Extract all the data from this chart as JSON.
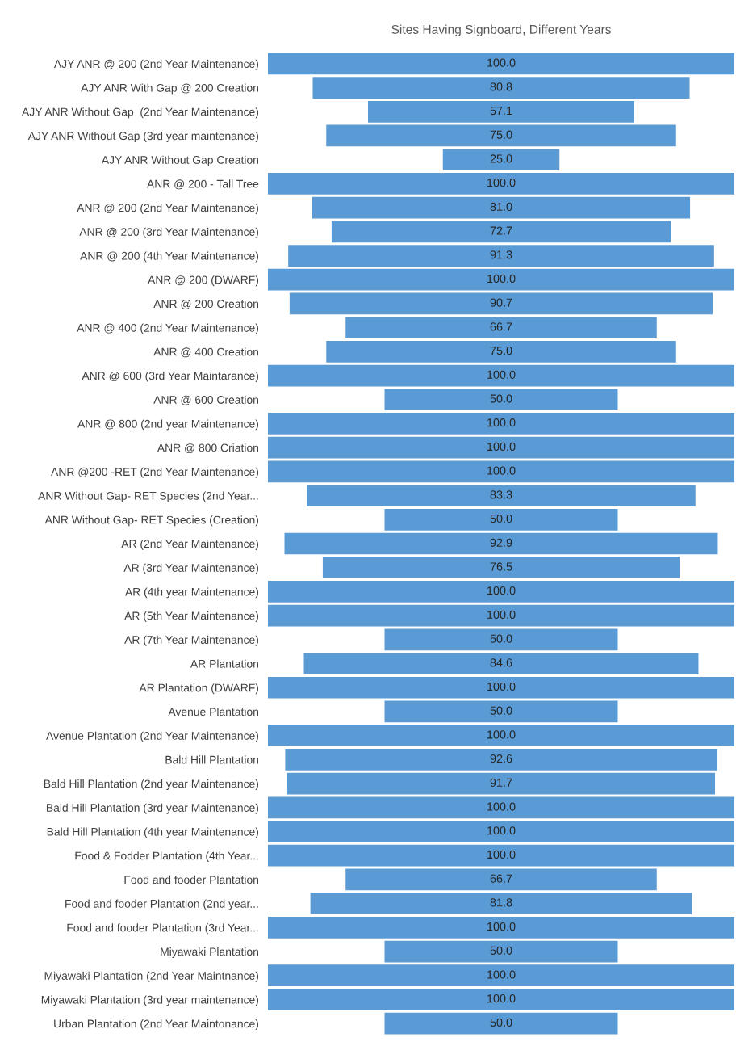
{
  "chart_data": {
    "type": "other",
    "title": "Sites Having Signboard, Different Years",
    "categories": [
      "AJY ANR @ 200 (2nd Year Maintenance)",
      "AJY ANR With Gap @ 200 Creation",
      "AJY ANR Without Gap  (2nd Year Maintenance)",
      "AJY ANR Without Gap (3rd year maintenance)",
      "AJY ANR Without Gap Creation",
      "ANR @ 200 - Tall Tree",
      "ANR @ 200 (2nd Year Maintenance)",
      "ANR @ 200 (3rd Year Maintenance)",
      "ANR @ 200 (4th Year Maintenance)",
      "ANR @ 200 (DWARF)",
      "ANR @ 200 Creation",
      "ANR @ 400 (2nd Year Maintenance)",
      "ANR @ 400 Creation",
      "ANR @ 600 (3rd Year Maintarance)",
      "ANR @ 600 Creation",
      "ANR @ 800 (2nd year Maintenance)",
      "ANR @ 800 Criation",
      "ANR @200 -RET (2nd Year Maintenance)",
      "ANR Without Gap- RET Species (2nd Year...",
      "ANR Without Gap- RET Species (Creation)",
      "AR (2nd Year Maintenance)",
      "AR (3rd Year Maintenance)",
      "AR (4th year Maintenance)",
      "AR (5th Year Maintenance)",
      "AR (7th Year Maintenance)",
      "AR Plantation",
      "AR Plantation (DWARF)",
      "Avenue Plantation",
      "Avenue Plantation (2nd Year Maintenance)",
      "Bald Hill Plantation",
      "Bald Hill Plantation (2nd year Maintenance)",
      "Bald Hill Plantation (3rd year Maintenance)",
      "Bald Hill Plantation (4th year Maintenance)",
      "Food & Fodder Plantation (4th Year...",
      "Food and fooder Plantation",
      "Food and fooder Plantation (2nd year...",
      "Food and fooder Plantation (3rd Year...",
      "Miyawaki Plantation",
      "Miyawaki Plantation (2nd Year Maintnance)",
      "Miyawaki Plantation (3rd year maintenance)",
      "Urban Plantation (2nd Year Maintonance)"
    ],
    "values": [
      100,
      80.8,
      57.1,
      75,
      25,
      100,
      81,
      72.7,
      91.3,
      100,
      90.7,
      66.7,
      75,
      100,
      50,
      100,
      100,
      100,
      83.3,
      50,
      92.9,
      76.5,
      100,
      100,
      50,
      84.6,
      100,
      50,
      100,
      92.6,
      91.7,
      100,
      100,
      100,
      66.7,
      81.8,
      100,
      50,
      100,
      100,
      50
    ],
    "value_labels": [
      "100.0",
      "80.8",
      "57.1",
      "75.0",
      "25.0",
      "100.0",
      "81.0",
      "72.7",
      "91.3",
      "100.0",
      "90.7",
      "66.7",
      "75.0",
      "100.0",
      "50.0",
      "100.0",
      "100.0",
      "100.0",
      "83.3",
      "50.0",
      "92.9",
      "76.5",
      "100.0",
      "100.0",
      "50.0",
      "84.6",
      "100.0",
      "50.0",
      "100.0",
      "92.6",
      "91.7",
      "100.0",
      "100.0",
      "100.0",
      "66.7",
      "81.8",
      "100.0",
      "50.0",
      "100.0",
      "100.0",
      "50.0"
    ],
    "color": "#5b9bd5"
  }
}
